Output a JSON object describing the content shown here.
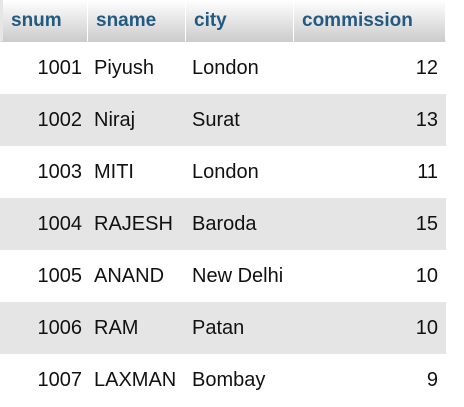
{
  "table": {
    "columns": [
      {
        "key": "snum",
        "label": "snum"
      },
      {
        "key": "sname",
        "label": "sname"
      },
      {
        "key": "city",
        "label": "city"
      },
      {
        "key": "commission",
        "label": "commission"
      }
    ],
    "rows": [
      {
        "snum": "1001",
        "sname": "Piyush",
        "city": "London",
        "commission": "12"
      },
      {
        "snum": "1002",
        "sname": "Niraj",
        "city": "Surat",
        "commission": "13"
      },
      {
        "snum": "1003",
        "sname": "MITI",
        "city": "London",
        "commission": "11"
      },
      {
        "snum": "1004",
        "sname": "RAJESH",
        "city": "Baroda",
        "commission": "15"
      },
      {
        "snum": "1005",
        "sname": "ANAND",
        "city": "New Delhi",
        "commission": "10"
      },
      {
        "snum": "1006",
        "sname": "RAM",
        "city": "Patan",
        "commission": "10"
      },
      {
        "snum": "1007",
        "sname": "LAXMAN",
        "city": "Bombay",
        "commission": "9"
      }
    ]
  },
  "colors": {
    "header_text": "#235a81",
    "row_even": "#e5e5e5",
    "row_odd": "#ffffff"
  }
}
